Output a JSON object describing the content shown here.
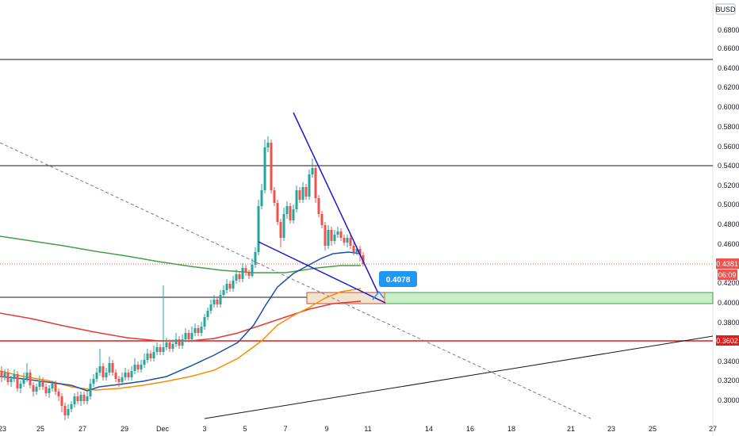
{
  "currency_badge": "BUSD",
  "chart_data": {
    "type": "candlestick",
    "y_ticks": [
      "0.6800",
      "0.6600",
      "0.6400",
      "0.6200",
      "0.6000",
      "0.5800",
      "0.5600",
      "0.5400",
      "0.5200",
      "0.5000",
      "0.4800",
      "0.4600",
      "0.4200",
      "0.4000",
      "0.3800",
      "0.3400",
      "0.3200",
      "0.3000"
    ],
    "x_ticks": [
      "23",
      "25",
      "27",
      "29",
      "Dec",
      "3",
      "5",
      "7",
      "9",
      "11",
      "14",
      "16",
      "18",
      "21",
      "23",
      "25",
      "27"
    ],
    "current_price": "0.4381",
    "countdown": "06:09",
    "level_label": "0.3602",
    "callout": "0.4078",
    "horizontal_levels": [
      0.6489,
      0.5406,
      0.4046,
      0.3602
    ],
    "support_zone": [
      0.3995,
      0.4115
    ],
    "colors": {
      "bull": "#26a69a",
      "bear": "#ef5350",
      "ma_green": "#43a047",
      "ma_red": "#e53935",
      "ma_orange": "#fb8c00",
      "ma_blue": "#1e4fa8",
      "trendline": "#1a1acd",
      "level_red": "#e11d1d",
      "zone": "#c8ecc8",
      "callout": "#2196f3"
    }
  }
}
